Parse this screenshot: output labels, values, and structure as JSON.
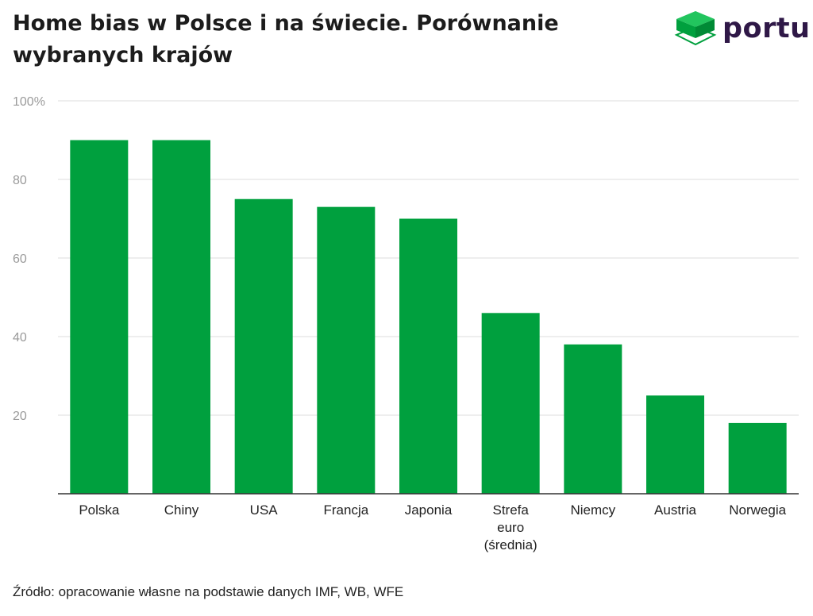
{
  "title": "Home bias w Polsce i na świecie. Porównanie wybranych krajów",
  "logo": {
    "text": "portu",
    "icon": "layered-cube-icon",
    "color": "#2f1847",
    "accent": "#00a03e"
  },
  "source": "Źródło: opracowanie własne na podstawie danych IMF, WB, WFE",
  "chart_data": {
    "type": "bar",
    "title": "Home bias w Polsce i na świecie. Porównanie wybranych krajów",
    "categories": [
      "Polska",
      "Chiny",
      "USA",
      "Francja",
      "Japonia",
      "Strefa euro (średnia)",
      "Niemcy",
      "Austria",
      "Norwegia"
    ],
    "category_lines": [
      [
        "Polska"
      ],
      [
        "Chiny"
      ],
      [
        "USA"
      ],
      [
        "Francja"
      ],
      [
        "Japonia"
      ],
      [
        "Strefa",
        "euro",
        "(średnia)"
      ],
      [
        "Niemcy"
      ],
      [
        "Austria"
      ],
      [
        "Norwegia"
      ]
    ],
    "values": [
      90,
      90,
      75,
      73,
      70,
      46,
      38,
      25,
      18
    ],
    "ylim": [
      0,
      100
    ],
    "yticks": [
      20,
      40,
      60,
      80,
      100
    ],
    "ytick_labels": [
      "20",
      "40",
      "60",
      "80",
      "100%"
    ],
    "grid": true,
    "bar_color": "#00a03e",
    "xlabel": "",
    "ylabel": ""
  }
}
